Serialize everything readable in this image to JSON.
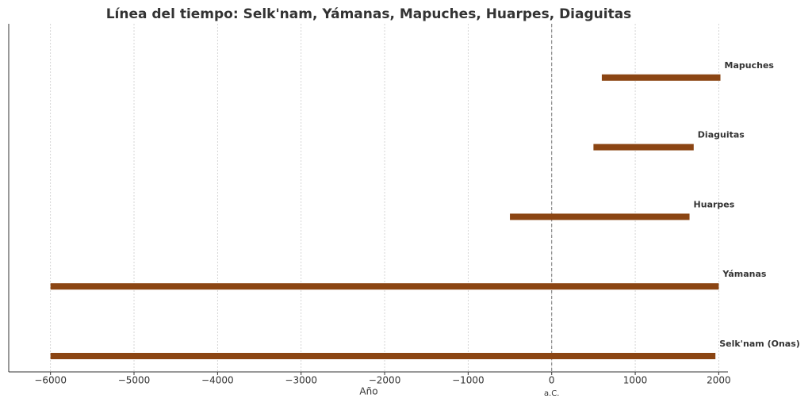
{
  "chart_data": {
    "type": "timeline",
    "title": "Línea del tiempo: Selk'nam, Yámanas, Mapuches, Huarpes, Diaguitas",
    "x_label": "Año",
    "categories": [
      "Selk'nam (Onas)",
      "Yámanas",
      "Huarpes",
      "Diaguitas",
      "Mapuches"
    ],
    "start": [
      -6000,
      -6000,
      -500,
      500,
      600
    ],
    "end": [
      1960,
      2000,
      1650,
      1700,
      2020
    ],
    "color": "#8b4513",
    "xlim": [
      -6500,
      2110
    ],
    "xticks": [
      {
        "value": -6000,
        "label": "−6000"
      },
      {
        "value": -5000,
        "label": "−5000"
      },
      {
        "value": -4000,
        "label": "−4000"
      },
      {
        "value": -3000,
        "label": "−3000"
      },
      {
        "value": -2000,
        "label": "−2000"
      },
      {
        "value": -1000,
        "label": "−1000"
      },
      0,
      1000,
      2000
    ],
    "grid": true,
    "reference_line": {
      "value": 0,
      "label": "a.C."
    }
  }
}
